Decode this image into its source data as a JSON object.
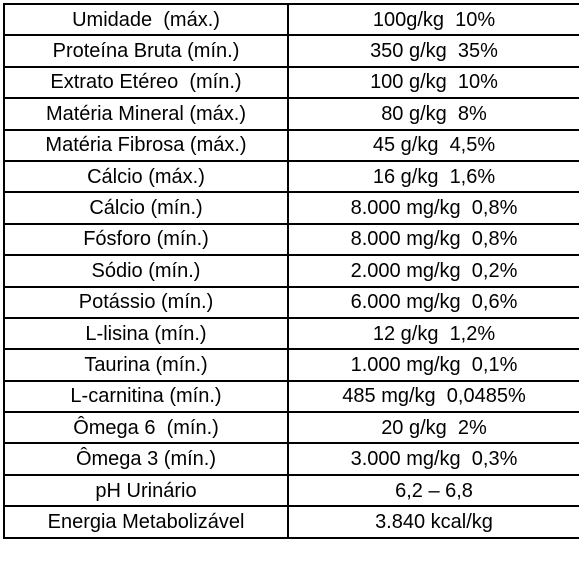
{
  "table": {
    "rows": [
      {
        "label": "Umidade  (máx.)",
        "value": "100g/kg  10%"
      },
      {
        "label": "Proteína Bruta (mín.)",
        "value": "350 g/kg  35%"
      },
      {
        "label": "Extrato Etéreo  (mín.)",
        "value": "100 g/kg  10%"
      },
      {
        "label": "Matéria Mineral (máx.)",
        "value": "80 g/kg  8%"
      },
      {
        "label": "Matéria Fibrosa (máx.)",
        "value": "45 g/kg  4,5%"
      },
      {
        "label": "Cálcio (máx.)",
        "value": "16 g/kg  1,6%"
      },
      {
        "label": "Cálcio (mín.)",
        "value": "8.000 mg/kg  0,8%"
      },
      {
        "label": "Fósforo (mín.)",
        "value": "8.000 mg/kg  0,8%"
      },
      {
        "label": "Sódio (mín.)",
        "value": "2.000 mg/kg  0,2%"
      },
      {
        "label": "Potássio (mín.)",
        "value": "6.000 mg/kg  0,6%"
      },
      {
        "label": "L-lisina (mín.)",
        "value": "12 g/kg  1,2%"
      },
      {
        "label": "Taurina (mín.)",
        "value": "1.000 mg/kg  0,1%"
      },
      {
        "label": "L-carnitina (mín.)",
        "value": "485 mg/kg  0,0485%"
      },
      {
        "label": "Ômega 6  (mín.)",
        "value": "20 g/kg  2%"
      },
      {
        "label": "Ômega 3 (mín.)",
        "value": "3.000 mg/kg  0,3%"
      },
      {
        "label": "pH Urinário",
        "value": "6,2 – 6,8"
      },
      {
        "label": "Energia Metabolizável",
        "value": "3.840 kcal/kg"
      }
    ]
  }
}
